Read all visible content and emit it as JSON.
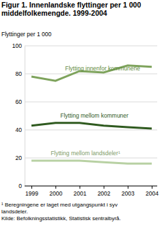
{
  "chart_data": {
    "type": "line",
    "title": "Figur 1. Innenlandske flyttinger per 1 000 middelfolkemengde. 1999-2004",
    "y_label": "Flyttinger per 1 000",
    "categories": [
      "1999",
      "2000",
      "2001",
      "2002",
      "2003",
      "2004"
    ],
    "series": [
      {
        "name": "Flytting innenfor kommunene",
        "color": "#7ea35c",
        "values": [
          78,
          75,
          82,
          81,
          86,
          85
        ]
      },
      {
        "name": "Flytting mellom kommuner",
        "color": "#2f5a1f",
        "values": [
          43,
          45,
          45,
          43,
          42,
          41
        ]
      },
      {
        "name": "Flytting mellom landsdeler¹",
        "color": "#b8d1a3",
        "values": [
          18,
          18,
          18,
          17,
          16,
          16
        ]
      }
    ],
    "ylim": [
      0,
      100
    ],
    "yticks": [
      0,
      20,
      40,
      60,
      80,
      100
    ],
    "grid": true,
    "footnote": "¹ Beregningene er laget med utgangspunkt i syv landsdeler.",
    "source": "Kilde: Befolkningsstatistikk, Statistisk sentralbyrå."
  }
}
